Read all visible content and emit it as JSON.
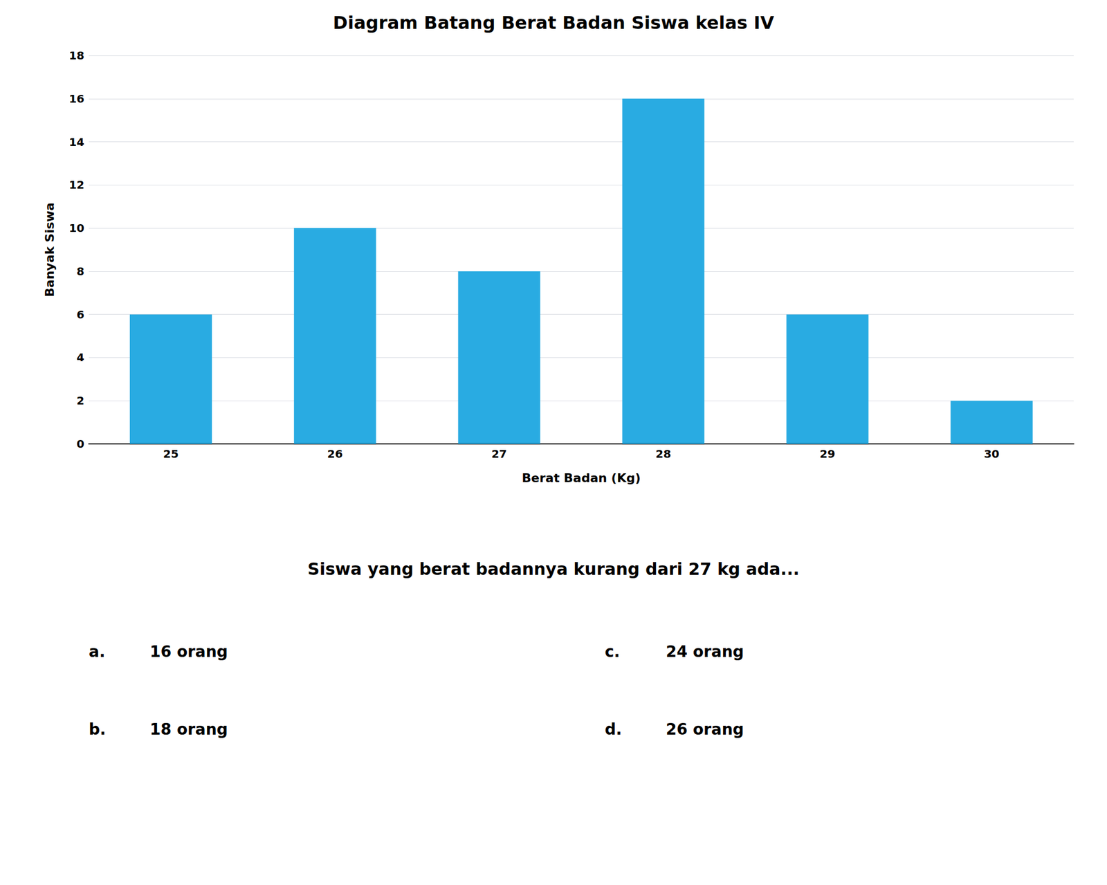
{
  "chart_data": {
    "type": "bar",
    "title": "Diagram Batang Berat Badan Siswa kelas IV",
    "xlabel": "Berat Badan (Kg)",
    "ylabel": "Banyak Siswa",
    "categories": [
      25,
      26,
      27,
      28,
      29,
      30
    ],
    "values": [
      6,
      10,
      8,
      16,
      6,
      2
    ],
    "color": "#29ABE2",
    "ylim": [
      0,
      18
    ],
    "yticks": [
      0,
      2,
      4,
      6,
      8,
      10,
      12,
      14,
      16,
      18
    ],
    "grid": true,
    "annotations": [
      "Siswa yang berat badannya kurang dari 27 kg ada...",
      "a.",
      "16 orang",
      "b.",
      "18 orang",
      "c.",
      "24 orang",
      "d.",
      "26 orang"
    ]
  }
}
